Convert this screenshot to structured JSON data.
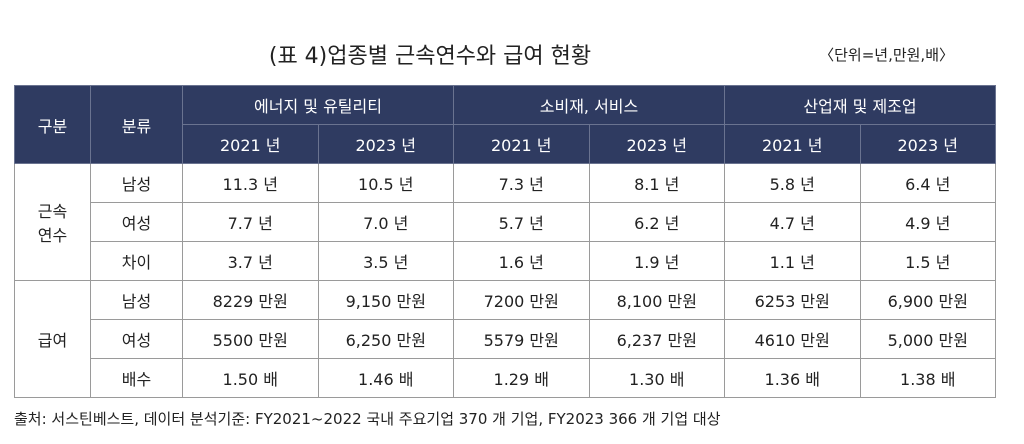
{
  "title": "(표 4)업종별 근속연수와 급여 현황",
  "unit": "〈단위=년,만원,배〉",
  "table": {
    "header": {
      "group_label": "구분",
      "type_label": "분류",
      "groups": [
        {
          "name": "에너지 및 유틸리티",
          "years": [
            "2021 년",
            "2023 년"
          ]
        },
        {
          "name": "소비재, 서비스",
          "years": [
            "2021 년",
            "2023 년"
          ]
        },
        {
          "name": "산업재 및 제조업",
          "years": [
            "2021 년",
            "2023 년"
          ]
        }
      ]
    },
    "sections": [
      {
        "label": [
          "근속",
          "연수"
        ],
        "rows": [
          {
            "label": "남성",
            "cells": [
              "11.3 년",
              "10.5 년",
              "7.3 년",
              "8.1 년",
              "5.8 년",
              "6.4 년"
            ]
          },
          {
            "label": "여성",
            "cells": [
              "7.7 년",
              "7.0 년",
              "5.7 년",
              "6.2 년",
              "4.7 년",
              "4.9 년"
            ]
          },
          {
            "label": "차이",
            "cells": [
              "3.7 년",
              "3.5 년",
              "1.6 년",
              "1.9 년",
              "1.1 년",
              "1.5 년"
            ]
          }
        ]
      },
      {
        "label": [
          "급여"
        ],
        "rows": [
          {
            "label": "남성",
            "cells": [
              "8229 만원",
              "9,150 만원",
              "7200 만원",
              "8,100 만원",
              "6253 만원",
              "6,900 만원"
            ]
          },
          {
            "label": "여성",
            "cells": [
              "5500 만원",
              "6,250 만원",
              "5579 만원",
              "6,237 만원",
              "4610 만원",
              "5,000 만원"
            ]
          },
          {
            "label": "배수",
            "cells": [
              "1.50 배",
              "1.46 배",
              "1.29 배",
              "1.30 배",
              "1.36 배",
              "1.38 배"
            ]
          }
        ]
      }
    ]
  },
  "source": "출처: 서스틴베스트, 데이터 분석기준: FY2021~2022 국내 주요기업 370 개 기업, FY2023 366 개 기업 대상"
}
